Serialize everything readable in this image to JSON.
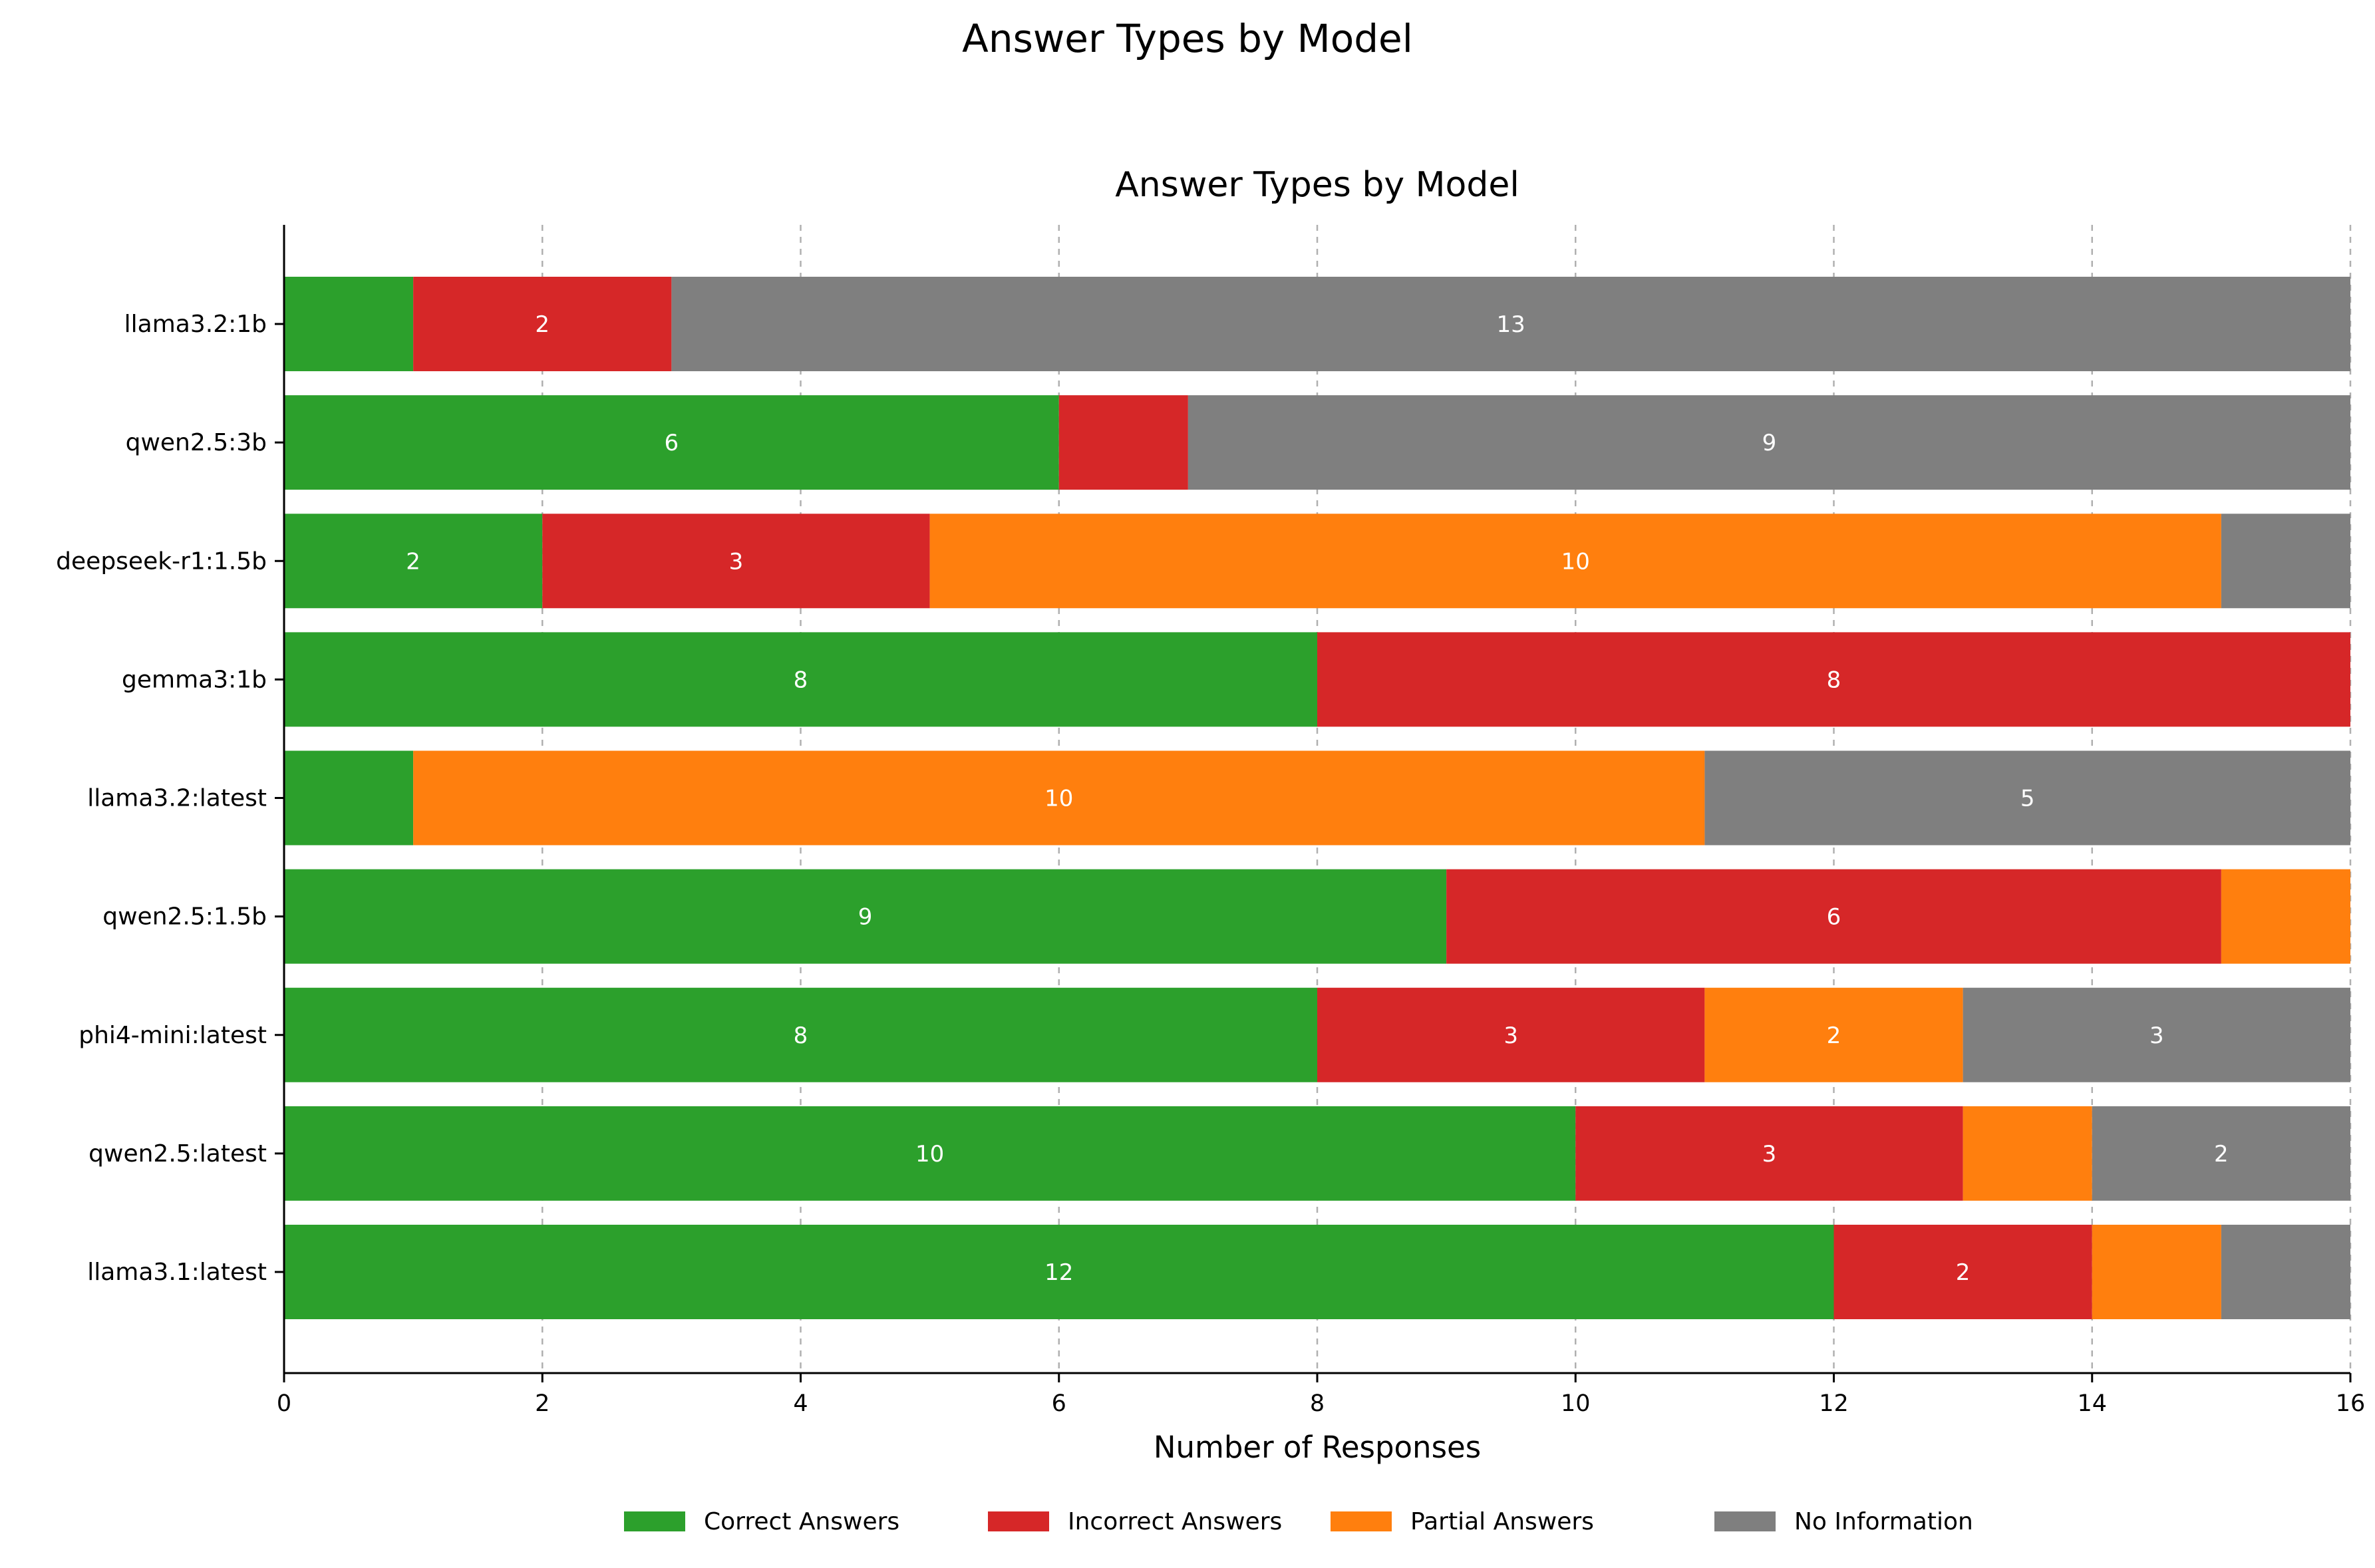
{
  "figure": {
    "suptitle": "Answer Types by Model"
  },
  "chart_data": {
    "type": "bar",
    "orientation": "horizontal",
    "stacked": true,
    "title": "Answer Types by Model",
    "xlabel": "Number of Responses",
    "ylabel": "",
    "xlim": [
      0,
      16
    ],
    "xticks": [
      0,
      2,
      4,
      6,
      8,
      10,
      12,
      14,
      16
    ],
    "grid": "x dashed",
    "legend_position": "bottom-center",
    "categories": [
      "llama3.1:latest",
      "qwen2.5:latest",
      "phi4-mini:latest",
      "qwen2.5:1.5b",
      "llama3.2:latest",
      "gemma3:1b",
      "deepseek-r1:1.5b",
      "qwen2.5:3b",
      "llama3.2:1b"
    ],
    "series": [
      {
        "name": "Correct Answers",
        "color": "#2ca02c",
        "values": [
          12,
          10,
          8,
          9,
          1,
          8,
          2,
          6,
          1
        ]
      },
      {
        "name": "Incorrect Answers",
        "color": "#d62728",
        "values": [
          2,
          3,
          3,
          6,
          0,
          8,
          3,
          1,
          2
        ]
      },
      {
        "name": "Partial Answers",
        "color": "#ff7f0e",
        "values": [
          1,
          1,
          2,
          1,
          10,
          0,
          10,
          0,
          0
        ]
      },
      {
        "name": "No Information",
        "color": "#7f7f7f",
        "values": [
          1,
          2,
          3,
          0,
          5,
          0,
          1,
          9,
          13
        ]
      }
    ],
    "data_labels": "shown inside segments with value >= 2"
  }
}
